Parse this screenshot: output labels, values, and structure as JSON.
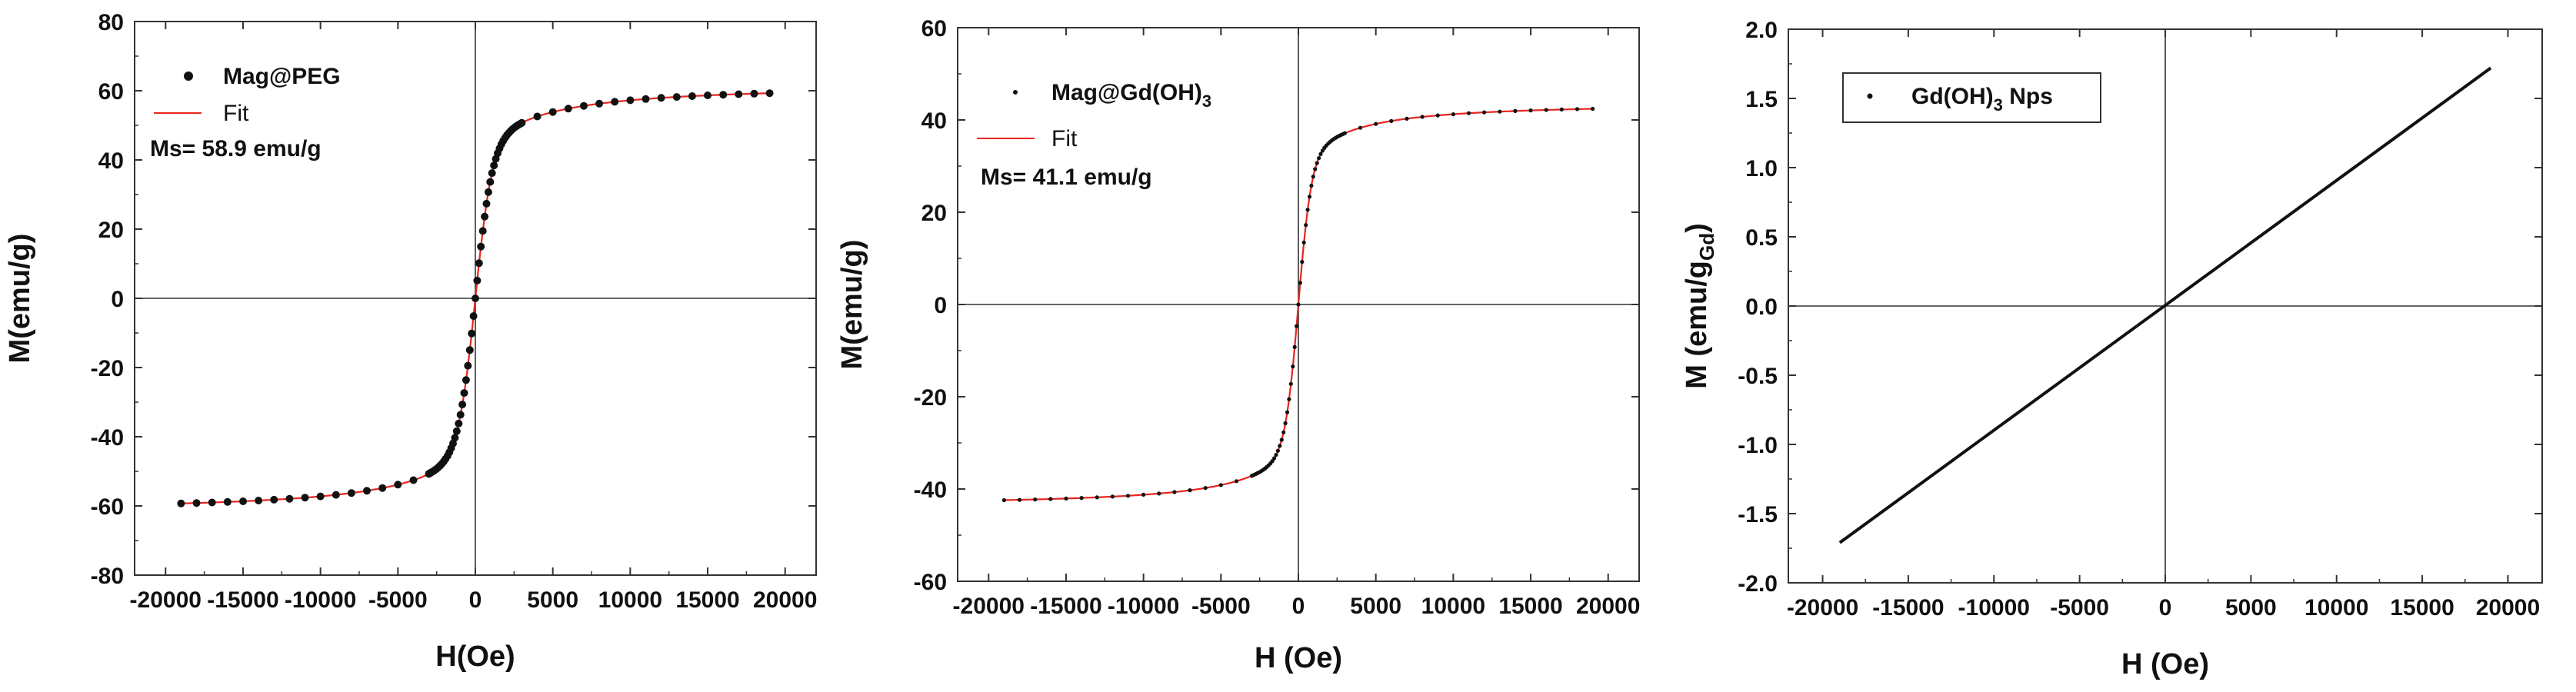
{
  "chart_data": [
    {
      "type": "scatter",
      "xlabel": "H(Oe)",
      "ylabel": "M(emu/g)",
      "xlim": [
        -22000,
        22000
      ],
      "ylim": [
        -80,
        80
      ],
      "xticks": [
        -20000,
        -15000,
        -10000,
        -5000,
        0,
        5000,
        10000,
        15000,
        20000
      ],
      "xtick_labels": [
        "-20000",
        "-15000",
        "-10000",
        "-5000",
        "0",
        "5000",
        "10000",
        "15000",
        "20000"
      ],
      "yticks": [
        -80,
        -60,
        -40,
        -20,
        0,
        20,
        40,
        60,
        80
      ],
      "ytick_labels": [
        "-80",
        "-60",
        "-40",
        "-20",
        "0",
        "20",
        "40",
        "60",
        "80"
      ],
      "legend": [
        "Mag@PEG",
        "Fit"
      ],
      "annotation": "Ms= 58.9 emu/g",
      "legend_position": "top-left",
      "curve": {
        "ms": 61.8,
        "h0": 1100,
        "chi": 0.0
      }
    },
    {
      "type": "scatter",
      "xlabel": "H (Oe)",
      "ylabel": "M(emu/g)",
      "xlim": [
        -22000,
        22000
      ],
      "ylim": [
        -60,
        60
      ],
      "xticks": [
        -20000,
        -15000,
        -10000,
        -5000,
        0,
        5000,
        10000,
        15000,
        20000
      ],
      "xtick_labels": [
        "-20000",
        "-15000",
        "-10000",
        "-5000",
        "0",
        "5000",
        "10000",
        "15000",
        "20000"
      ],
      "yticks": [
        -60,
        -40,
        -20,
        0,
        20,
        40,
        60
      ],
      "ytick_labels": [
        "-60",
        "-40",
        "-20",
        "0",
        "20",
        "40",
        "60"
      ],
      "legend": [
        "Mag@Gd(OH)3",
        "Fit"
      ],
      "annotation": "Ms= 41.1 emu/g",
      "legend_position": "top-left",
      "curve": {
        "ms": 43.8,
        "h0": 850,
        "chi": 0.0
      }
    },
    {
      "type": "line",
      "xlabel": "H (Oe)",
      "ylabel": "M (emu/gGd)",
      "xlim": [
        -22000,
        22000
      ],
      "ylim": [
        -2.0,
        2.0
      ],
      "xticks": [
        -20000,
        -15000,
        -10000,
        -5000,
        0,
        5000,
        10000,
        15000,
        20000
      ],
      "xtick_labels": [
        "-20000",
        "-15000",
        "-10000",
        "-5000",
        "0",
        "5000",
        "10000",
        "15000",
        "20000"
      ],
      "yticks": [
        -2.0,
        -1.5,
        -1.0,
        -0.5,
        0.0,
        0.5,
        1.0,
        1.5,
        2.0
      ],
      "ytick_labels": [
        "-2.0",
        "-1.5",
        "-1.0",
        "-0.5",
        "0.0",
        "0.5",
        "1.0",
        "1.5",
        "2.0"
      ],
      "legend": [
        "Gd(OH)3 Nps"
      ],
      "legend_position": "top-left",
      "x": [
        -19000,
        19000
      ],
      "y": [
        -1.71,
        1.72
      ]
    }
  ],
  "texts": {
    "p1_legend1": "Mag@PEG",
    "p1_legend2": "Fit",
    "p1_annotation": "Ms= 58.9 emu/g",
    "p1_ylabel": "M(emu/g)",
    "p1_xlabel": "H(Oe)",
    "p2_legend1_main": "Mag@Gd(OH)",
    "p2_legend1_sub": "3",
    "p2_legend2": "Fit",
    "p2_annotation": "Ms= 41.1 emu/g",
    "p2_ylabel": "M(emu/g)",
    "p2_xlabel": "H (Oe)",
    "p3_legend_main": "Gd(OH)",
    "p3_legend_sub": "3",
    "p3_legend_rest": " Nps",
    "p3_ylabel_main": "M (emu/g",
    "p3_ylabel_sub": "Gd",
    "p3_ylabel_close": ")",
    "p3_xlabel": "H (Oe)"
  },
  "colors": {
    "data": "#111111",
    "fit": "#e8251f",
    "axis": "#333333"
  }
}
